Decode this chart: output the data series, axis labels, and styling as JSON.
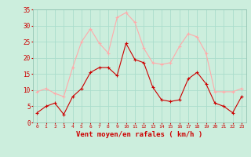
{
  "hours": [
    0,
    1,
    2,
    3,
    4,
    5,
    6,
    7,
    8,
    9,
    10,
    11,
    12,
    13,
    14,
    15,
    16,
    17,
    18,
    19,
    20,
    21,
    22,
    23
  ],
  "wind_avg": [
    3,
    5,
    6,
    2.5,
    8,
    10.5,
    15.5,
    17,
    17,
    14.5,
    24.5,
    19.5,
    18.5,
    11,
    7,
    6.5,
    7,
    13.5,
    15.5,
    12,
    6,
    5,
    3,
    8
  ],
  "wind_gust": [
    9.5,
    10.5,
    9,
    8,
    17,
    25,
    29,
    24.5,
    21.5,
    32.5,
    34,
    31,
    23,
    18.5,
    18,
    18.5,
    23.5,
    27.5,
    26.5,
    21.5,
    9.5,
    9.5,
    9.5,
    10.5
  ],
  "avg_color": "#cc0000",
  "gust_color": "#ffaaaa",
  "bg_color": "#cceedd",
  "grid_color": "#aaddcc",
  "tick_color": "#cc0000",
  "label_color": "#cc0000",
  "xlabel": "Vent moyen/en rafales ( km/h )",
  "ylim": [
    0,
    35
  ],
  "yticks": [
    0,
    5,
    10,
    15,
    20,
    25,
    30,
    35
  ],
  "xlim": [
    -0.5,
    23.5
  ]
}
